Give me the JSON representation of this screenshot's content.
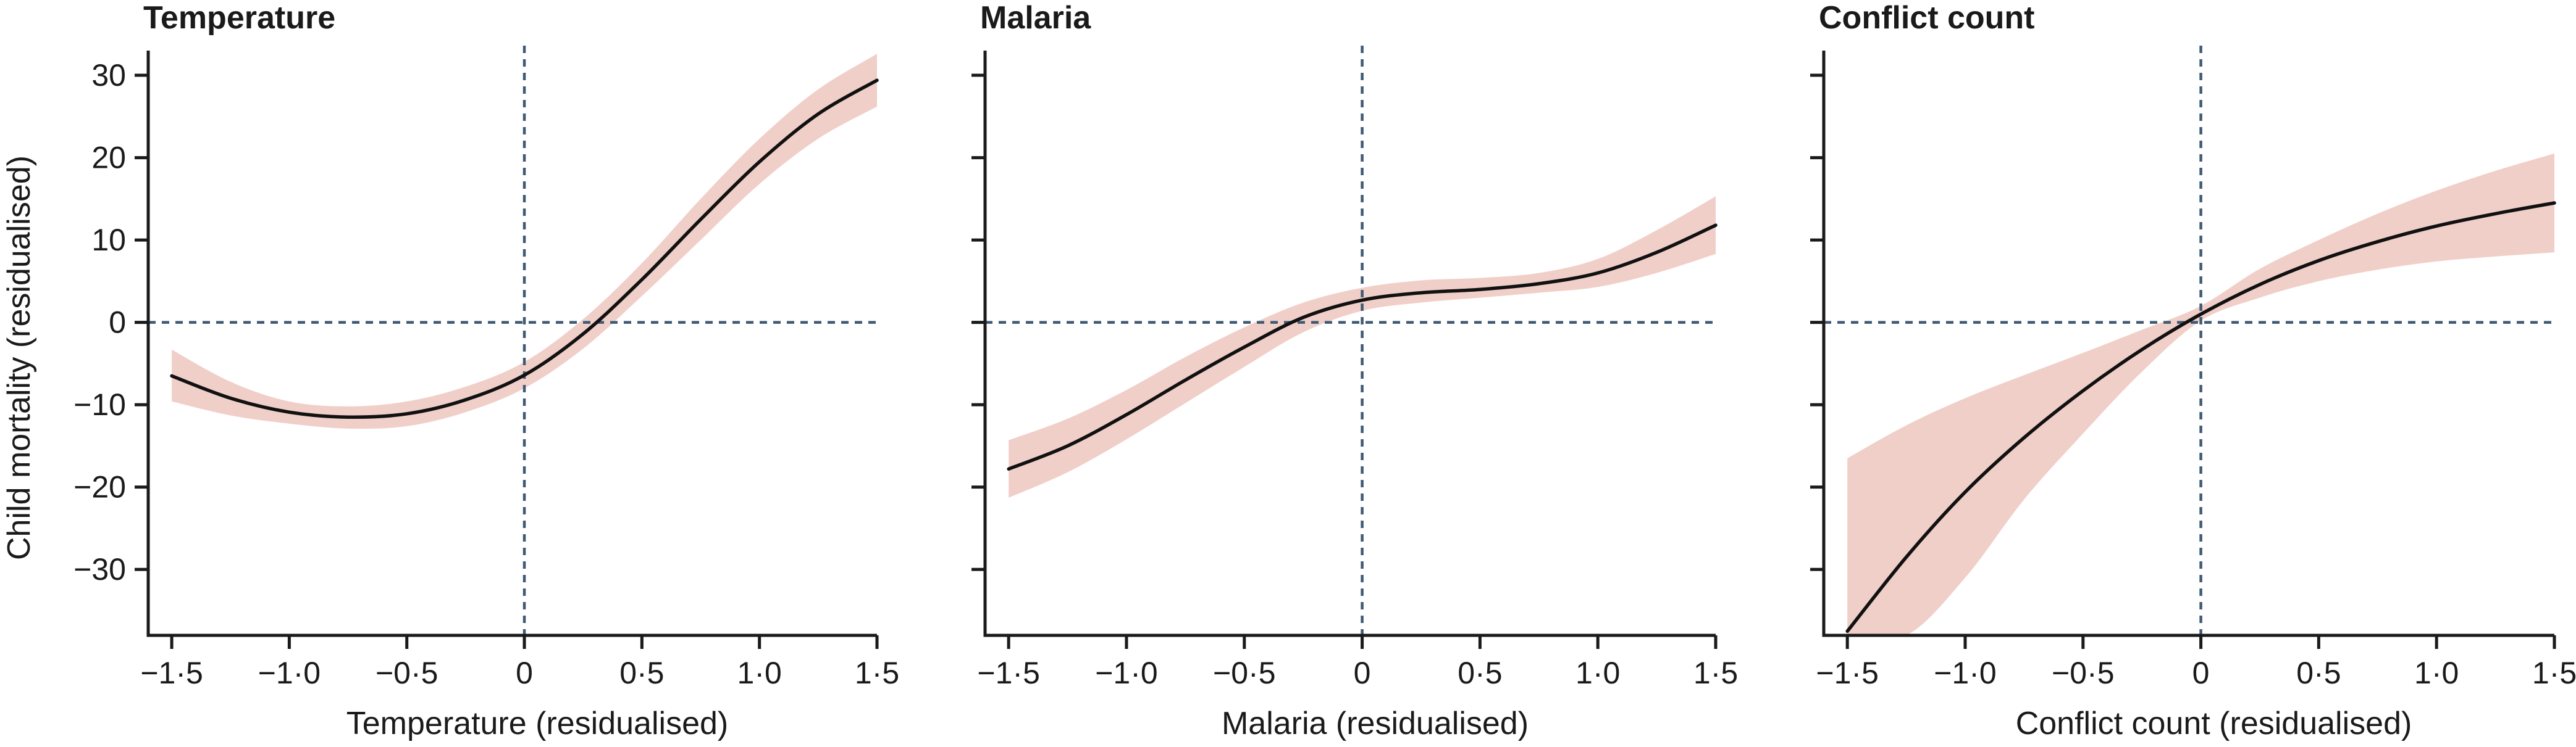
{
  "colors": {
    "line": "#111111",
    "band": "#f1cfc9",
    "reference": "#3f5a73",
    "axis": "#1a1a1a"
  },
  "shared": {
    "ylabel": "Child mortality (residualised)",
    "xticks": [
      -1.5,
      -1.0,
      -0.5,
      0,
      0.5,
      1.0,
      1.5
    ],
    "xtick_labels": [
      "−1·5",
      "−1·0",
      "−0·5",
      "0",
      "0·5",
      "1·0",
      "1·5"
    ],
    "yticks": [
      30,
      20,
      10,
      0,
      -10,
      -20,
      -30
    ],
    "ytick_labels": [
      "30",
      "20",
      "10",
      "0",
      "−10",
      "−20",
      "−30"
    ]
  },
  "chart_data": [
    {
      "type": "line",
      "title": "Temperature",
      "xlabel": "Temperature (residualised)",
      "ylabel": "Child mortality (residualised)",
      "xlim": [
        -1.6,
        1.5
      ],
      "ylim": [
        -38,
        33
      ],
      "reference_lines": {
        "x": 0,
        "y": 0
      },
      "grid": false,
      "series": [
        {
          "x": [
            -1.5,
            -1.25,
            -1.0,
            -0.75,
            -0.5,
            -0.25,
            0,
            0.25,
            0.5,
            0.75,
            1.0,
            1.25,
            1.5
          ],
          "y": [
            -6.5,
            -9.2,
            -10.9,
            -11.5,
            -11.1,
            -9.4,
            -6.4,
            -1.4,
            5.2,
            12.5,
            19.5,
            25.3,
            29.4
          ],
          "lower": [
            -9.6,
            -11.3,
            -12.3,
            -12.9,
            -12.6,
            -10.9,
            -8.0,
            -3.2,
            3.2,
            10.0,
            16.8,
            22.3,
            26.2
          ],
          "upper": [
            -3.3,
            -7.2,
            -9.6,
            -10.2,
            -9.6,
            -7.8,
            -4.8,
            0.4,
            7.2,
            15.0,
            22.3,
            28.3,
            32.6
          ]
        }
      ]
    },
    {
      "type": "line",
      "title": "Malaria",
      "xlabel": "Malaria (residualised)",
      "xlim": [
        -1.6,
        1.5
      ],
      "ylim": [
        -38,
        33
      ],
      "reference_lines": {
        "x": 0,
        "y": 0
      },
      "grid": false,
      "series": [
        {
          "x": [
            -1.5,
            -1.25,
            -1.0,
            -0.75,
            -0.5,
            -0.25,
            0,
            0.25,
            0.5,
            0.75,
            1.0,
            1.25,
            1.5
          ],
          "y": [
            -17.8,
            -15.0,
            -11.2,
            -7.0,
            -3.0,
            0.6,
            2.7,
            3.6,
            4.0,
            4.7,
            6.0,
            8.5,
            11.8
          ],
          "lower": [
            -21.3,
            -18.2,
            -14.2,
            -9.8,
            -5.4,
            -1.2,
            1.4,
            2.4,
            3.0,
            3.6,
            4.3,
            6.0,
            8.3
          ],
          "upper": [
            -14.3,
            -11.7,
            -8.2,
            -4.2,
            -0.6,
            2.4,
            4.2,
            5.1,
            5.4,
            6.0,
            7.7,
            11.2,
            15.3
          ]
        }
      ]
    },
    {
      "type": "line",
      "title": "Conflict count",
      "xlabel": "Conflict count (residualised)",
      "xlim": [
        -1.6,
        1.5
      ],
      "ylim": [
        -38,
        33
      ],
      "reference_lines": {
        "x": 0,
        "y": 0
      },
      "grid": false,
      "series": [
        {
          "x": [
            -1.5,
            -1.25,
            -1.0,
            -0.75,
            -0.5,
            -0.25,
            0,
            0.25,
            0.5,
            0.75,
            1.0,
            1.25,
            1.5
          ],
          "y": [
            -37.5,
            -28.5,
            -20.6,
            -14.0,
            -8.3,
            -3.3,
            1.0,
            4.6,
            7.5,
            9.8,
            11.7,
            13.2,
            14.5
          ],
          "lower": [
            -38.0,
            -38.0,
            -31.0,
            -21.5,
            -13.5,
            -6.0,
            0.2,
            3.0,
            5.0,
            6.4,
            7.4,
            8.0,
            8.5
          ],
          "upper": [
            -16.5,
            -12.5,
            -9.2,
            -6.4,
            -3.7,
            -0.9,
            2.0,
            6.5,
            10.0,
            13.2,
            16.0,
            18.4,
            20.5
          ]
        }
      ]
    }
  ]
}
